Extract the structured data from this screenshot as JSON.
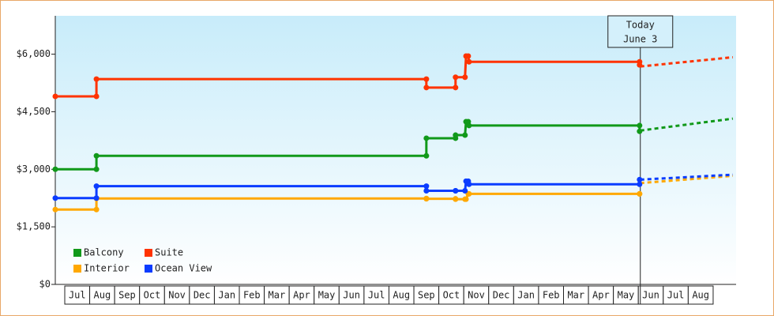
{
  "chart_data": {
    "type": "line",
    "step": true,
    "ylim": [
      0,
      7000
    ],
    "yticks": [
      {
        "value": 0,
        "label": "$0"
      },
      {
        "value": 1500,
        "label": "$1,500"
      },
      {
        "value": 3000,
        "label": "$3,000"
      },
      {
        "value": 4500,
        "label": "$4,500"
      },
      {
        "value": 6000,
        "label": "$6,000"
      }
    ],
    "xlim": [
      -0.38,
      26.92
    ],
    "xticks": [
      {
        "value": 0.5,
        "label": "Jul"
      },
      {
        "value": 1.5,
        "label": "Aug"
      },
      {
        "value": 2.5,
        "label": "Sep"
      },
      {
        "value": 3.5,
        "label": "Oct"
      },
      {
        "value": 4.5,
        "label": "Nov"
      },
      {
        "value": 5.5,
        "label": "Dec"
      },
      {
        "value": 6.5,
        "label": "Jan"
      },
      {
        "value": 7.5,
        "label": "Feb"
      },
      {
        "value": 8.5,
        "label": "Mar"
      },
      {
        "value": 9.5,
        "label": "Apr"
      },
      {
        "value": 10.5,
        "label": "May"
      },
      {
        "value": 11.5,
        "label": "Jun"
      },
      {
        "value": 12.5,
        "label": "Jul"
      },
      {
        "value": 13.5,
        "label": "Aug"
      },
      {
        "value": 14.5,
        "label": "Sep"
      },
      {
        "value": 15.5,
        "label": "Oct"
      },
      {
        "value": 16.5,
        "label": "Nov"
      },
      {
        "value": 17.5,
        "label": "Dec"
      },
      {
        "value": 18.5,
        "label": "Jan"
      },
      {
        "value": 19.5,
        "label": "Feb"
      },
      {
        "value": 20.5,
        "label": "Mar"
      },
      {
        "value": 21.5,
        "label": "Apr"
      },
      {
        "value": 22.5,
        "label": "May"
      },
      {
        "value": 23.5,
        "label": "Jun"
      },
      {
        "value": 24.5,
        "label": "Jul"
      },
      {
        "value": 25.5,
        "label": "Aug"
      }
    ],
    "grid": false,
    "legend": "lower left",
    "today": {
      "x": 23.08,
      "label": [
        "Today",
        "June 3"
      ]
    },
    "series": [
      {
        "name": "Balcony",
        "color": "#11991a",
        "x": [
          -0.38,
          1.27,
          1.27,
          14.5,
          14.5,
          15.67,
          15.67,
          16.05,
          16.09,
          16.18,
          16.21,
          23.05,
          23.05
        ],
        "values": [
          3000,
          3000,
          3350,
          3350,
          3810,
          3810,
          3890,
          3890,
          4240,
          4240,
          4140,
          4140,
          3990
        ],
        "forecast": {
          "x": [
            23.08,
            26.79
          ],
          "values": [
            4010,
            4320
          ]
        }
      },
      {
        "name": "Suite",
        "color": "#ff3300",
        "x": [
          -0.38,
          1.27,
          1.27,
          14.5,
          14.5,
          15.67,
          15.67,
          16.05,
          16.09,
          16.18,
          16.21,
          23.05,
          23.05
        ],
        "values": [
          4900,
          4900,
          5350,
          5350,
          5130,
          5130,
          5400,
          5400,
          5950,
          5950,
          5800,
          5800,
          5720
        ],
        "forecast": {
          "x": [
            23.08,
            26.79
          ],
          "values": [
            5680,
            5920
          ]
        }
      },
      {
        "name": "Interior",
        "color": "#ffa800",
        "x": [
          -0.38,
          1.27,
          1.27,
          14.5,
          14.5,
          15.67,
          15.67,
          16.05,
          16.09,
          16.18,
          16.21,
          23.05,
          23.05
        ],
        "values": [
          1950,
          1950,
          2240,
          2240,
          2230,
          2230,
          2220,
          2220,
          2220,
          2360,
          2360,
          2360,
          2360
        ],
        "forecast": {
          "x": [
            23.08,
            26.79
          ],
          "values": [
            2640,
            2830
          ]
        }
      },
      {
        "name": "Ocean View",
        "color": "#0a3cff",
        "x": [
          -0.38,
          1.27,
          1.27,
          14.5,
          14.5,
          15.67,
          15.67,
          16.05,
          16.09,
          16.18,
          16.21,
          23.05,
          23.05
        ],
        "values": [
          2250,
          2250,
          2560,
          2560,
          2440,
          2440,
          2440,
          2440,
          2690,
          2690,
          2610,
          2610,
          2730
        ],
        "forecast": {
          "x": [
            23.08,
            26.79
          ],
          "values": [
            2730,
            2860
          ]
        }
      }
    ]
  }
}
